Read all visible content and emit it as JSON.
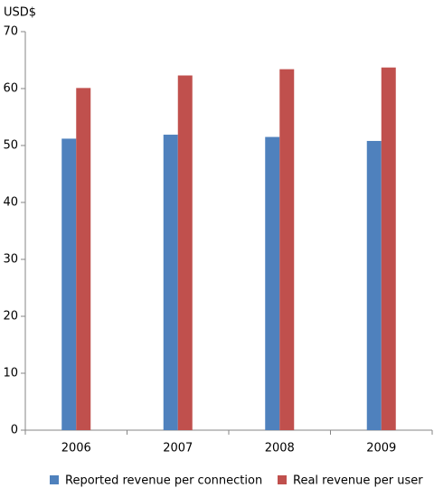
{
  "chart_data": {
    "type": "bar",
    "y_label": "USD$",
    "categories": [
      "2006",
      "2007",
      "2008",
      "2009"
    ],
    "series": [
      {
        "name": "Reported revenue per connection",
        "color": "#4f81bd",
        "values": [
          51.2,
          51.9,
          51.5,
          50.8
        ]
      },
      {
        "name": "Real revenue per user",
        "color": "#c0504d",
        "values": [
          60.1,
          62.3,
          63.4,
          63.7
        ]
      }
    ],
    "ylim": [
      0,
      70
    ],
    "yticks": [
      0,
      10,
      20,
      30,
      40,
      50,
      60,
      70
    ],
    "grid": false,
    "legend": "bottom"
  }
}
